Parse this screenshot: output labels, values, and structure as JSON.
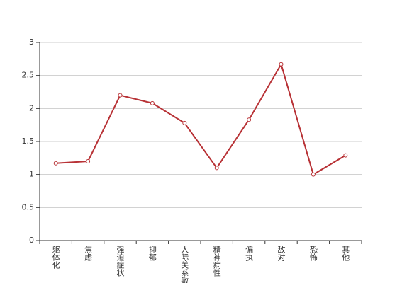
{
  "chart_data": {
    "type": "line",
    "categories": [
      "躯体化",
      "焦虑",
      "强迫症状",
      "抑郁",
      "人际关系敏感",
      "精神病性",
      "偏执",
      "敌对",
      "恐怖",
      "其他"
    ],
    "values": [
      1.17,
      1.2,
      2.2,
      2.08,
      1.78,
      1.1,
      1.83,
      2.67,
      1.0,
      1.29
    ],
    "color": "#b83236",
    "ylim": [
      0,
      3
    ],
    "yticks": [
      0,
      0.5,
      1,
      1.5,
      2,
      2.5,
      3
    ],
    "grid": true
  }
}
